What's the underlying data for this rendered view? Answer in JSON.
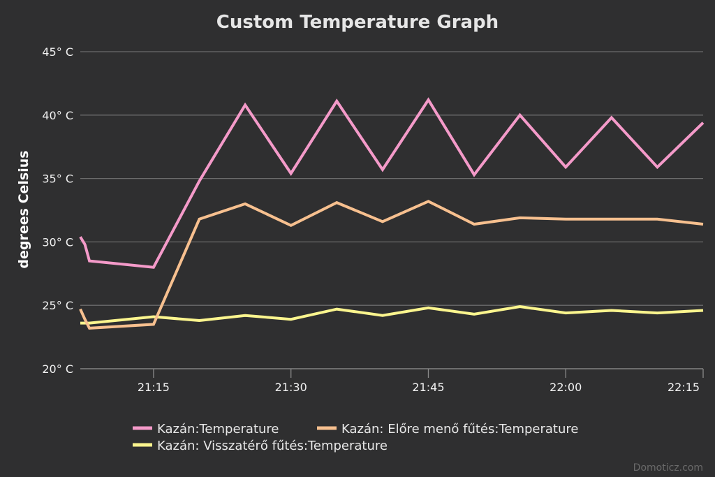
{
  "chart_data": {
    "type": "line",
    "title": "Custom Temperature Graph",
    "ylabel": "degrees Celsius",
    "ylim": [
      20,
      45
    ],
    "y_ticks": [
      20,
      25,
      30,
      35,
      40,
      45
    ],
    "y_tick_labels": [
      "20° C",
      "25° C",
      "30° C",
      "35° C",
      "40° C",
      "45° C"
    ],
    "x_ticks": [
      "21:15",
      "21:30",
      "21:45",
      "22:00",
      "22:15"
    ],
    "x_range": [
      "21:07",
      "22:15"
    ],
    "grid": true,
    "legend_position": "bottom",
    "series": [
      {
        "name": "Kazán:Temperature",
        "color": "#f49ac9",
        "x": [
          "21:07",
          "21:07:30",
          "21:08",
          "21:15",
          "21:20",
          "21:25",
          "21:30",
          "21:35",
          "21:40",
          "21:45",
          "21:50",
          "21:55",
          "22:00",
          "22:05",
          "22:10",
          "22:15"
        ],
        "values": [
          30.4,
          29.8,
          28.5,
          28.0,
          34.8,
          40.8,
          35.4,
          41.1,
          35.7,
          41.2,
          35.3,
          40.0,
          35.9,
          39.8,
          35.9,
          39.4
        ]
      },
      {
        "name": "Kazán: Előre menő fűtés:Temperature",
        "color": "#f7c08f",
        "x": [
          "21:07",
          "21:07:30",
          "21:08",
          "21:15",
          "21:20",
          "21:25",
          "21:30",
          "21:35",
          "21:40",
          "21:45",
          "21:50",
          "21:55",
          "22:00",
          "22:05",
          "22:10",
          "22:15"
        ],
        "values": [
          24.7,
          23.9,
          23.2,
          23.5,
          31.8,
          33.0,
          31.3,
          33.1,
          31.6,
          33.2,
          31.4,
          31.9,
          31.8,
          31.8,
          31.8,
          31.4
        ]
      },
      {
        "name": "Kazán: Visszatérő fűtés:Temperature",
        "color": "#fbf58e",
        "x": [
          "21:07",
          "21:08",
          "21:15",
          "21:20",
          "21:25",
          "21:30",
          "21:35",
          "21:40",
          "21:45",
          "21:50",
          "21:55",
          "22:00",
          "22:05",
          "22:10",
          "22:15"
        ],
        "values": [
          23.6,
          23.6,
          24.1,
          23.8,
          24.2,
          23.9,
          24.7,
          24.2,
          24.8,
          24.3,
          24.9,
          24.4,
          24.6,
          24.4,
          24.6
        ]
      }
    ]
  },
  "credit": "Domoticz.com"
}
